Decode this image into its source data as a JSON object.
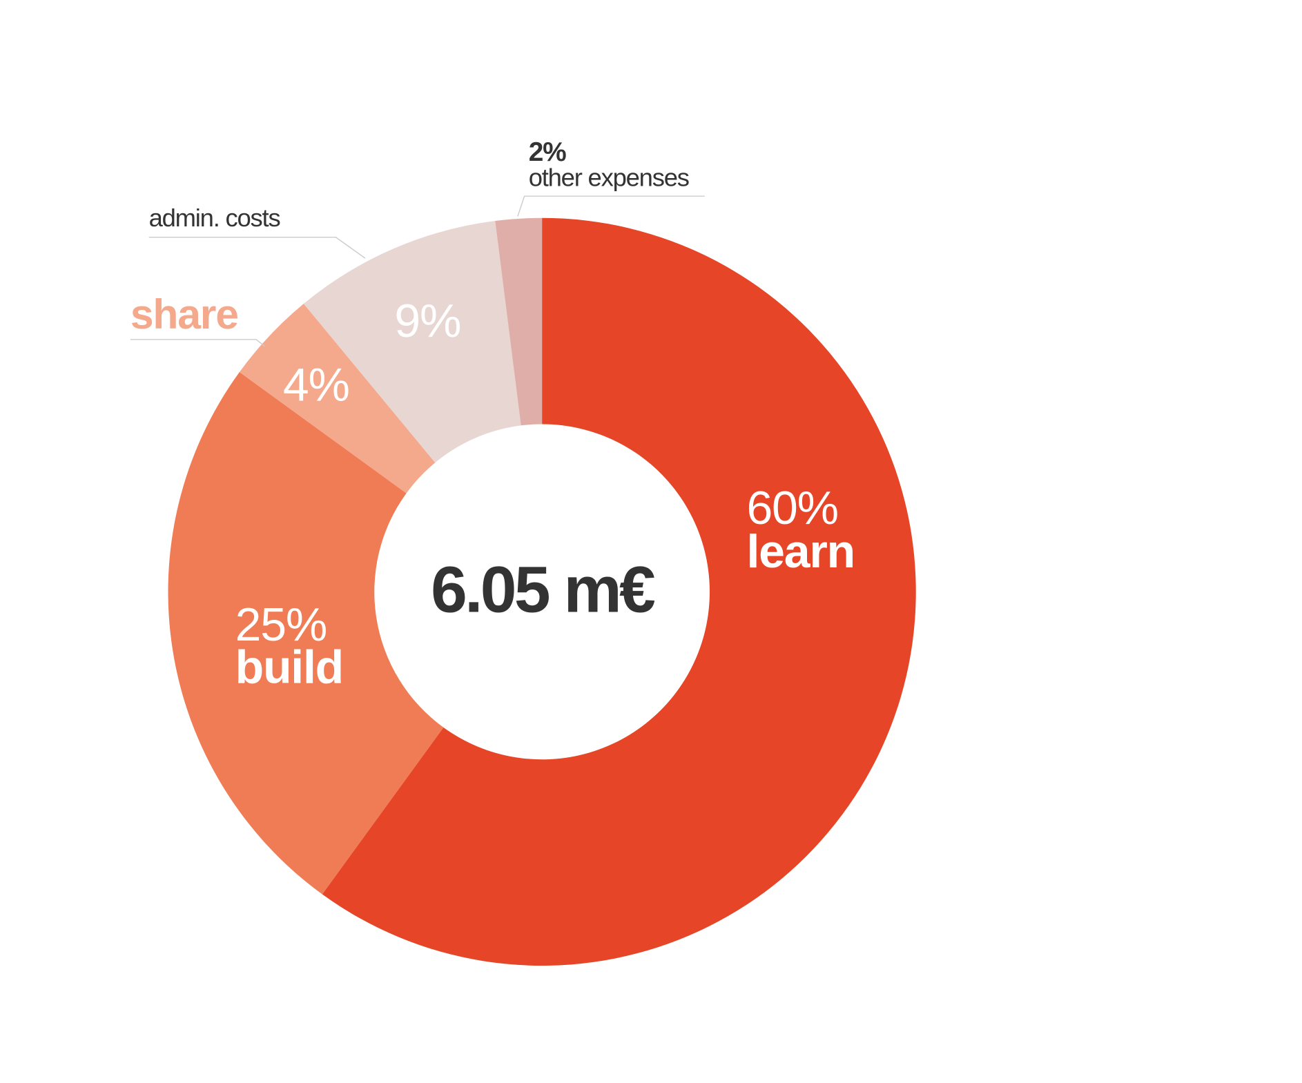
{
  "chart_data": {
    "type": "donut",
    "categories": [
      "learn",
      "build",
      "share",
      "admin. costs",
      "other expenses"
    ],
    "values": [
      60,
      25,
      4,
      9,
      2
    ],
    "value_labels": [
      "60%",
      "25%",
      "4%",
      "9%",
      "2%"
    ],
    "colors": [
      "#e64527",
      "#ef7c55",
      "#f4a98c",
      "#e8d6d2",
      "#e0aea8"
    ],
    "center_label": "6.05 m€"
  }
}
